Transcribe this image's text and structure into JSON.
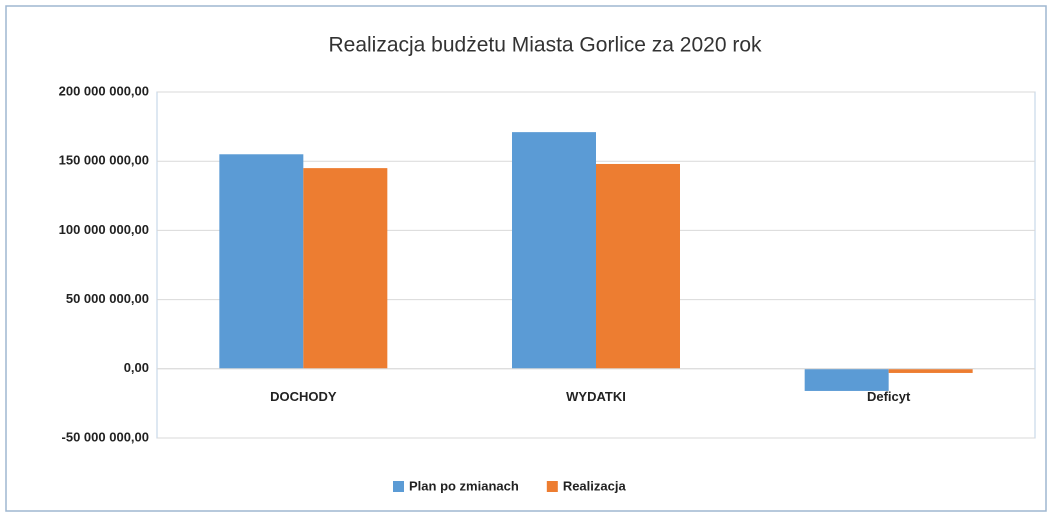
{
  "chart_data": {
    "type": "bar",
    "title": "Realizacja budżetu Miasta Gorlice za 2020 rok",
    "categories": [
      "DOCHODY",
      "WYDATKI",
      "Deficyt"
    ],
    "series": [
      {
        "name": "Plan po zmianach",
        "color": "#5b9bd5",
        "values": [
          155000000,
          171000000,
          -16000000
        ]
      },
      {
        "name": "Realizacja",
        "color": "#ed7d31",
        "values": [
          145000000,
          148000000,
          -3000000
        ]
      }
    ],
    "ylim": [
      -50000000,
      200000000
    ],
    "yticks": [
      {
        "value": -50000000,
        "label": "-50 000 000,00"
      },
      {
        "value": 0,
        "label": "0,00"
      },
      {
        "value": 50000000,
        "label": "50 000 000,00"
      },
      {
        "value": 100000000,
        "label": "100 000 000,00"
      },
      {
        "value": 150000000,
        "label": "150 000 000,00"
      },
      {
        "value": 200000000,
        "label": "200 000 000,00"
      }
    ],
    "grid": true,
    "legend": "bottom"
  }
}
